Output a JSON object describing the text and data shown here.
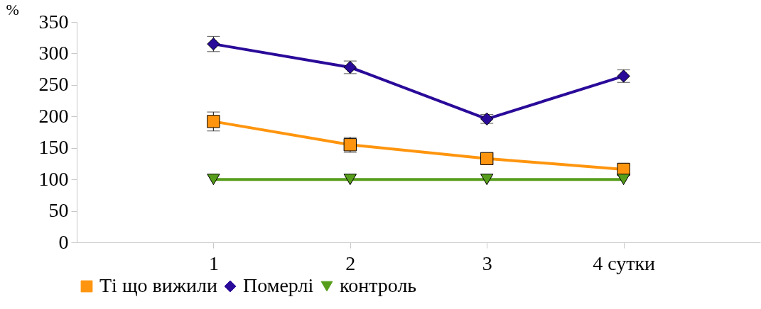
{
  "chart_data": {
    "type": "line",
    "ylabel": "%",
    "categories": [
      "1",
      "2",
      "3",
      "4 сутки"
    ],
    "ylim": [
      0,
      350
    ],
    "yticks": [
      0,
      50,
      100,
      150,
      200,
      250,
      300,
      350
    ],
    "grid": false,
    "legend": "bottom",
    "line_style": "solid",
    "series": [
      {
        "name": "Ті що вижили",
        "color": "#ff950e",
        "marker": "square",
        "values": [
          192,
          155,
          133,
          116
        ],
        "errors": [
          15,
          12,
          9,
          7
        ]
      },
      {
        "name": "Померлі",
        "color": "#2a0a99",
        "marker": "diamond",
        "values": [
          315,
          278,
          196,
          264
        ],
        "errors": [
          12,
          10,
          7,
          10
        ]
      },
      {
        "name": "контроль",
        "color": "#579d1c",
        "marker": "triangle-down",
        "values": [
          100,
          100,
          100,
          100
        ]
      }
    ]
  }
}
